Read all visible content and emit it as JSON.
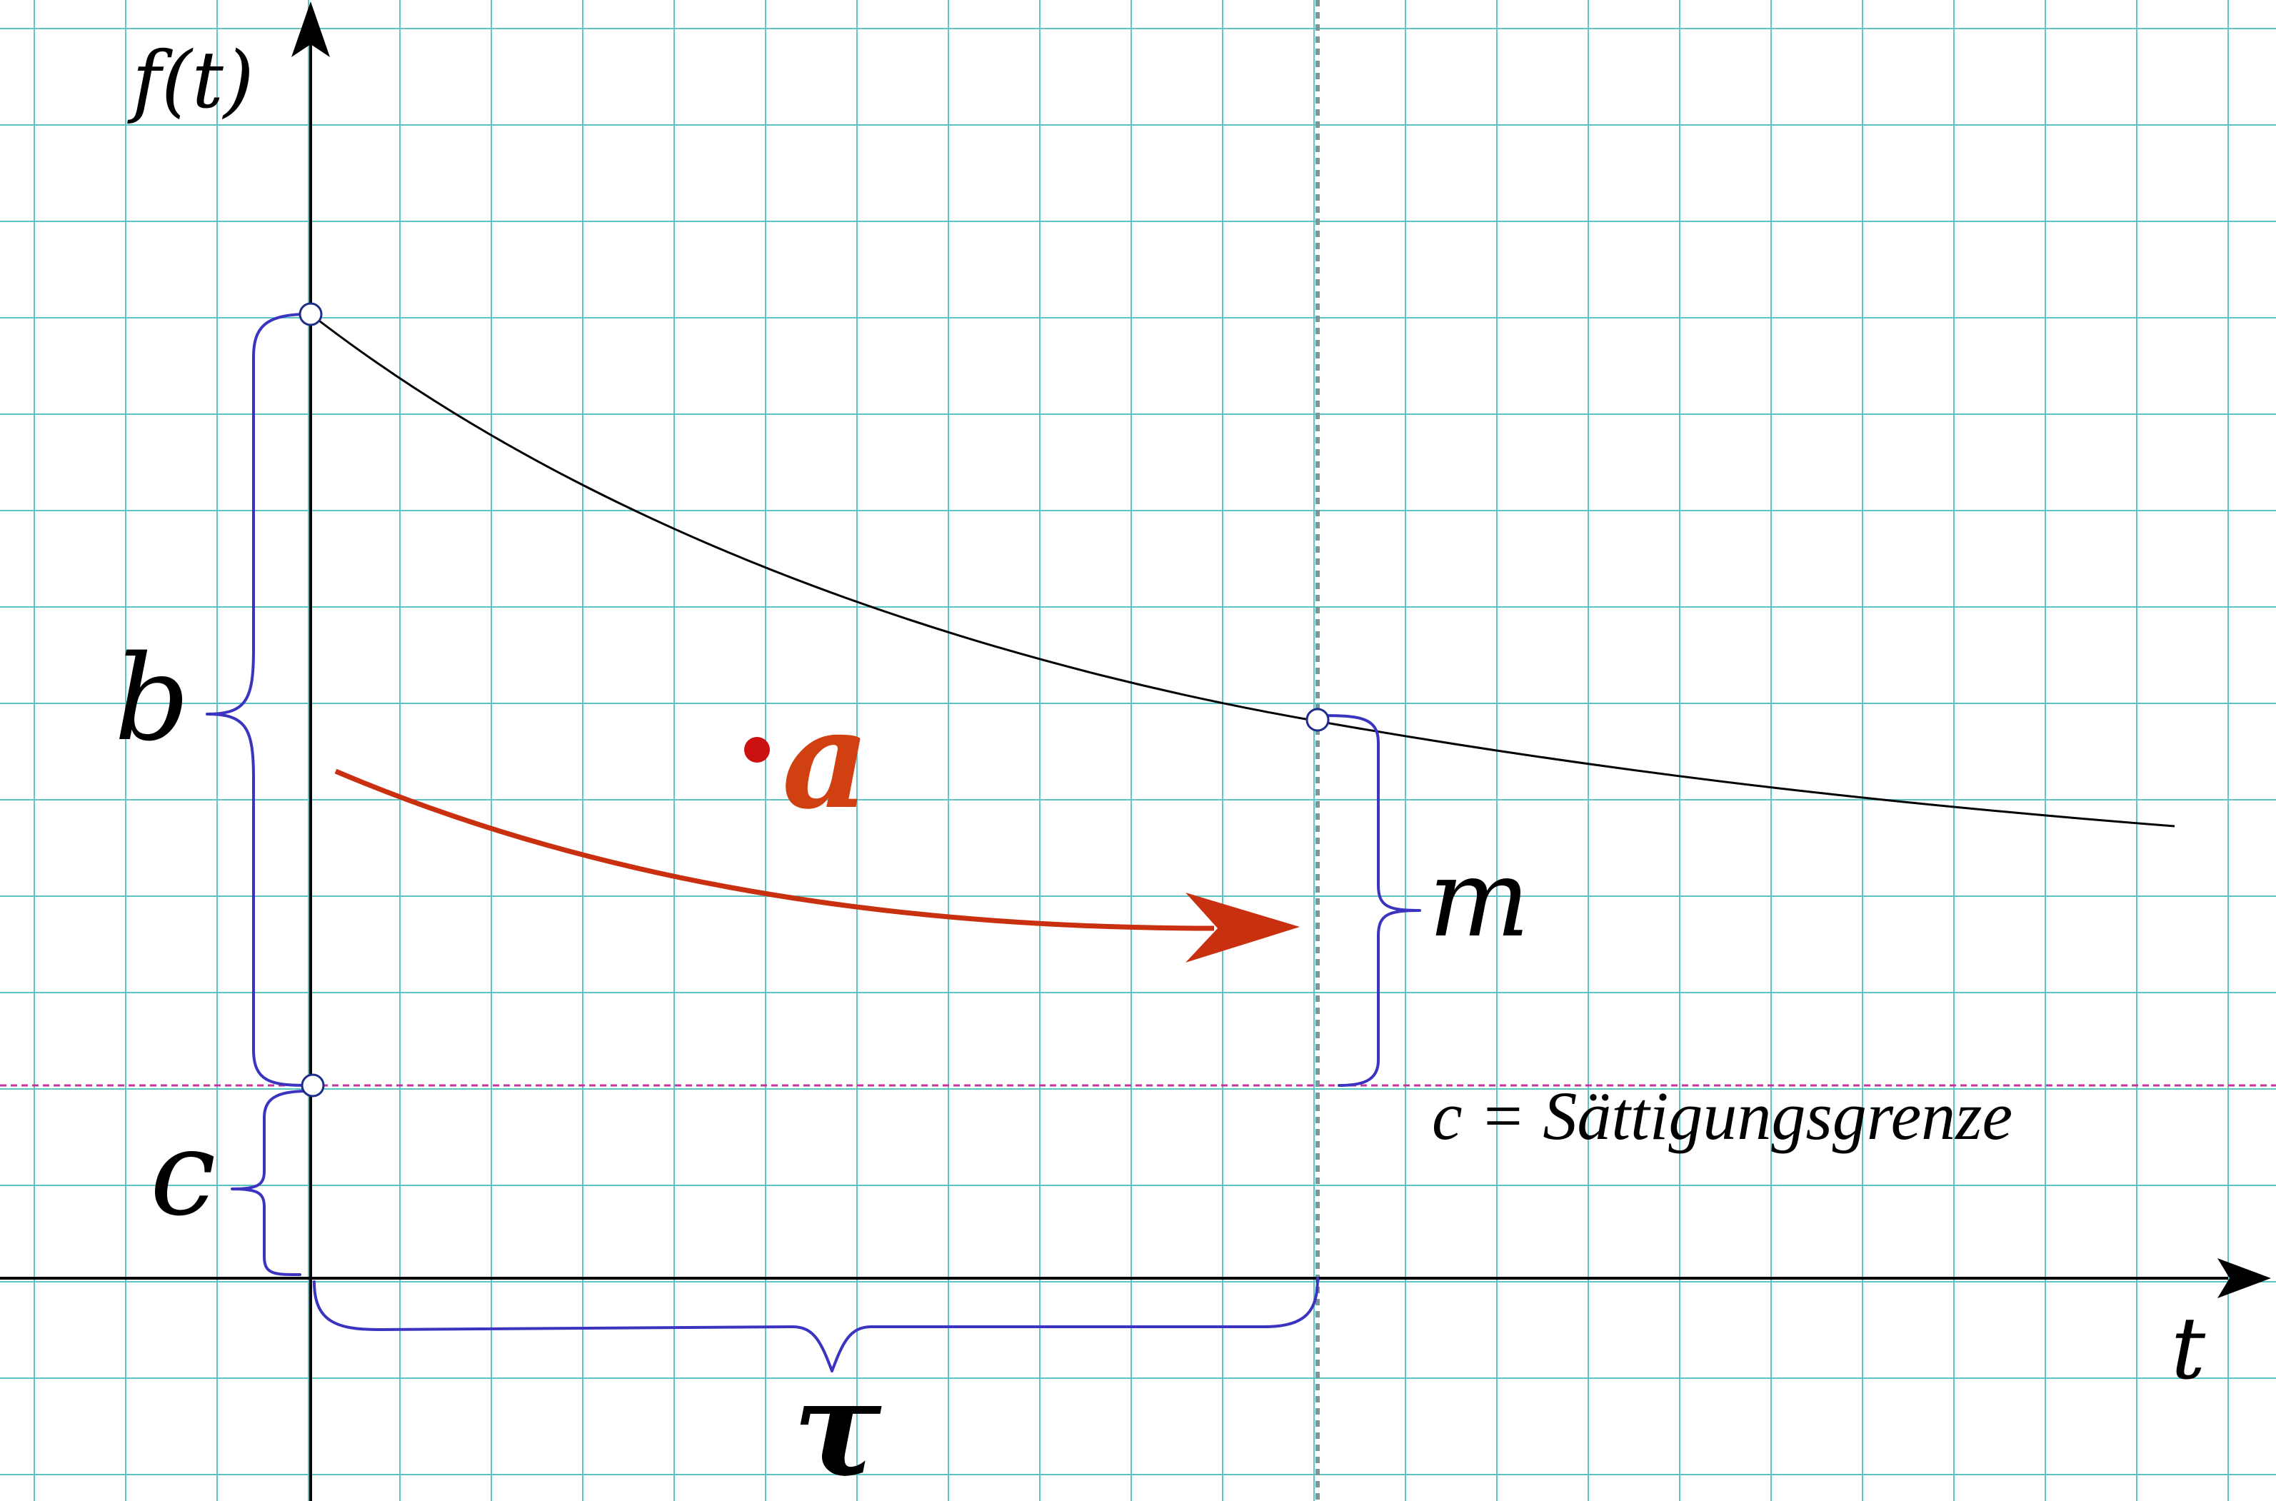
{
  "labels": {
    "y_axis": "f(t)",
    "x_axis": "t",
    "b": "b",
    "c": "c",
    "m": "m",
    "a": "a",
    "tau": "τ",
    "saturation": "c = Sättigungsgrenze"
  },
  "colors": {
    "grid": "#5cc4c4",
    "axis": "#000000",
    "brace": "#3a34c0",
    "saturation_line": "#c4359e",
    "tau_line": "#789898",
    "arrow": "#c83010",
    "dot": "#cc1111",
    "marker_stroke": "#1e2c8c"
  }
}
